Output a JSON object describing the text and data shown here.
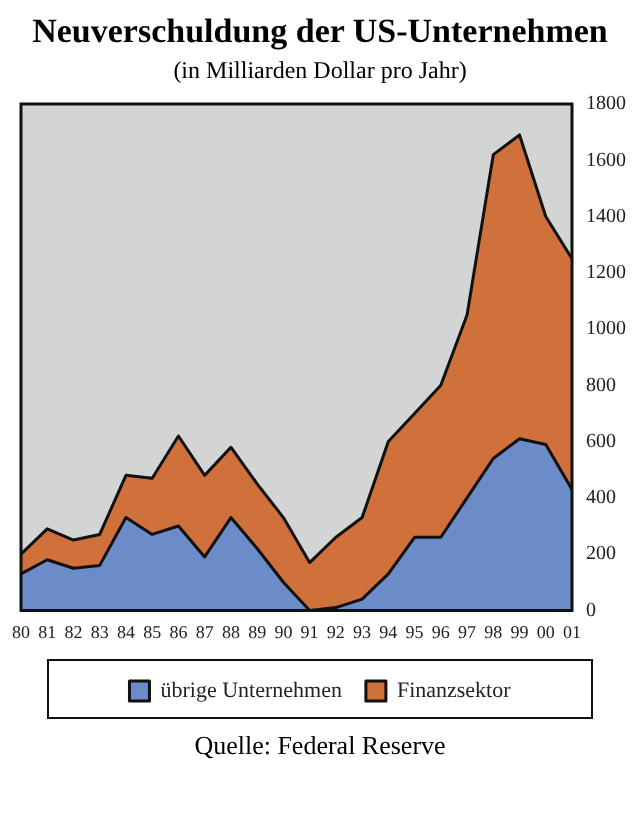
{
  "chart_data": {
    "type": "area",
    "stacked": true,
    "title": "Neuverschuldung der US-Unternehmen",
    "subtitle": "(in Milliarden Dollar pro Jahr)",
    "categories": [
      "80",
      "81",
      "82",
      "83",
      "84",
      "85",
      "86",
      "87",
      "88",
      "89",
      "90",
      "91",
      "92",
      "93",
      "94",
      "95",
      "96",
      "97",
      "98",
      "99",
      "00",
      "01"
    ],
    "series": [
      {
        "name": "übrige Unternehmen",
        "color": "#6b8cc8",
        "values": [
          130,
          180,
          150,
          160,
          330,
          270,
          300,
          190,
          330,
          220,
          100,
          0,
          10,
          40,
          130,
          260,
          260,
          400,
          540,
          610,
          590,
          430
        ]
      },
      {
        "name": "Finanzsektor",
        "color": "#d0703a",
        "values": [
          70,
          110,
          100,
          110,
          150,
          200,
          320,
          290,
          250,
          230,
          230,
          170,
          250,
          290,
          470,
          440,
          540,
          650,
          1080,
          1080,
          810,
          820
        ]
      }
    ],
    "ylim": [
      0,
      1800
    ],
    "yticks": [
      0,
      200,
      400,
      600,
      800,
      1000,
      1200,
      1400,
      1600,
      1800
    ],
    "grid": false,
    "legend": "bottom",
    "annotations": [
      "Quelle: Federal Reserve"
    ]
  }
}
